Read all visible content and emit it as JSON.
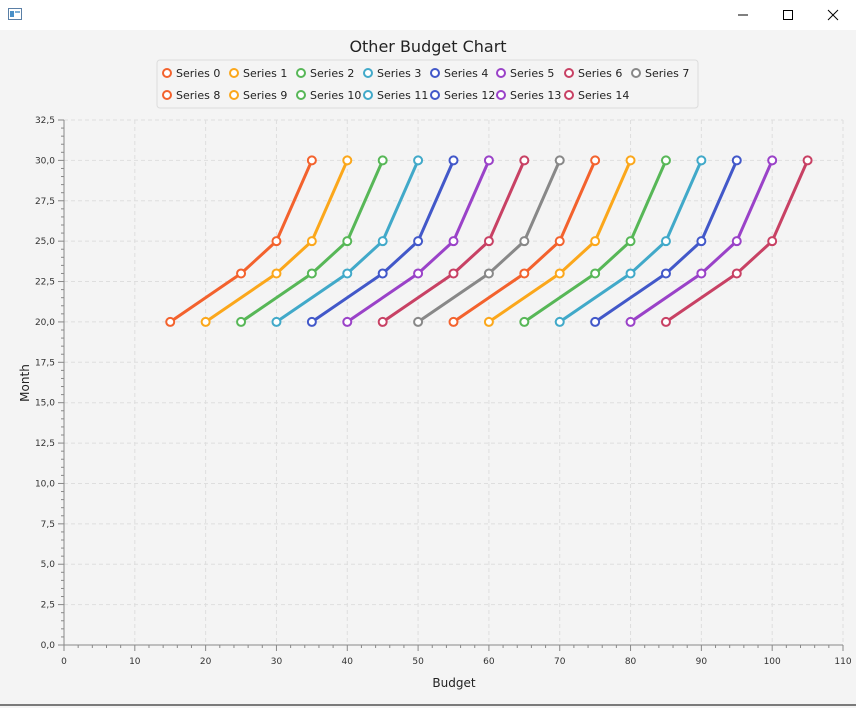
{
  "window": {
    "title": ""
  },
  "chart_data": {
    "type": "line",
    "title": "Other Budget Chart",
    "xlabel": "Budget",
    "ylabel": "Month",
    "xlim": [
      0,
      110
    ],
    "ylim": [
      0,
      32.5
    ],
    "x_ticks": [
      0,
      10,
      20,
      30,
      40,
      50,
      60,
      70,
      80,
      90,
      100,
      110
    ],
    "y_ticks": [
      0,
      2.5,
      5,
      7.5,
      10,
      12.5,
      15,
      17.5,
      20,
      22.5,
      25,
      27.5,
      30,
      32.5
    ],
    "x_tick_labels": [
      "0",
      "10",
      "20",
      "30",
      "40",
      "50",
      "60",
      "70",
      "80",
      "90",
      "100",
      "110"
    ],
    "y_tick_labels": [
      "0,0",
      "2,5",
      "5,0",
      "7,5",
      "10,0",
      "12,5",
      "15,0",
      "17,5",
      "20,0",
      "22,5",
      "25,0",
      "27,5",
      "30,0",
      "32,5"
    ],
    "grid": true,
    "legend_position": "top",
    "series": [
      {
        "name": "Series 0",
        "color": "#f3622d",
        "x": [
          15,
          25,
          30,
          35
        ],
        "y": [
          20,
          23,
          25,
          30
        ]
      },
      {
        "name": "Series 1",
        "color": "#fba71b",
        "x": [
          20,
          30,
          35,
          40
        ],
        "y": [
          20,
          23,
          25,
          30
        ]
      },
      {
        "name": "Series 2",
        "color": "#57b757",
        "x": [
          25,
          35,
          40,
          45
        ],
        "y": [
          20,
          23,
          25,
          30
        ]
      },
      {
        "name": "Series 3",
        "color": "#41a9c9",
        "x": [
          30,
          40,
          45,
          50
        ],
        "y": [
          20,
          23,
          25,
          30
        ]
      },
      {
        "name": "Series 4",
        "color": "#4258c9",
        "x": [
          35,
          45,
          50,
          55
        ],
        "y": [
          20,
          23,
          25,
          30
        ]
      },
      {
        "name": "Series 5",
        "color": "#9a42c8",
        "x": [
          40,
          50,
          55,
          60
        ],
        "y": [
          20,
          23,
          25,
          30
        ]
      },
      {
        "name": "Series 6",
        "color": "#c84164",
        "x": [
          45,
          55,
          60,
          65
        ],
        "y": [
          20,
          23,
          25,
          30
        ]
      },
      {
        "name": "Series 7",
        "color": "#888888",
        "x": [
          50,
          60,
          65,
          70
        ],
        "y": [
          20,
          23,
          25,
          30
        ]
      },
      {
        "name": "Series 8",
        "color": "#f3622d",
        "x": [
          55,
          65,
          70,
          75
        ],
        "y": [
          20,
          23,
          25,
          30
        ]
      },
      {
        "name": "Series 9",
        "color": "#fba71b",
        "x": [
          60,
          70,
          75,
          80
        ],
        "y": [
          20,
          23,
          25,
          30
        ]
      },
      {
        "name": "Series 10",
        "color": "#57b757",
        "x": [
          65,
          75,
          80,
          85
        ],
        "y": [
          20,
          23,
          25,
          30
        ]
      },
      {
        "name": "Series 11",
        "color": "#41a9c9",
        "x": [
          70,
          80,
          85,
          90
        ],
        "y": [
          20,
          23,
          25,
          30
        ]
      },
      {
        "name": "Series 12",
        "color": "#4258c9",
        "x": [
          75,
          85,
          90,
          95
        ],
        "y": [
          20,
          23,
          25,
          30
        ]
      },
      {
        "name": "Series 13",
        "color": "#9a42c8",
        "x": [
          80,
          90,
          95,
          100
        ],
        "y": [
          20,
          23,
          25,
          30
        ]
      },
      {
        "name": "Series 14",
        "color": "#c84164",
        "x": [
          85,
          95,
          100,
          105
        ],
        "y": [
          20,
          23,
          25,
          30
        ]
      }
    ]
  }
}
